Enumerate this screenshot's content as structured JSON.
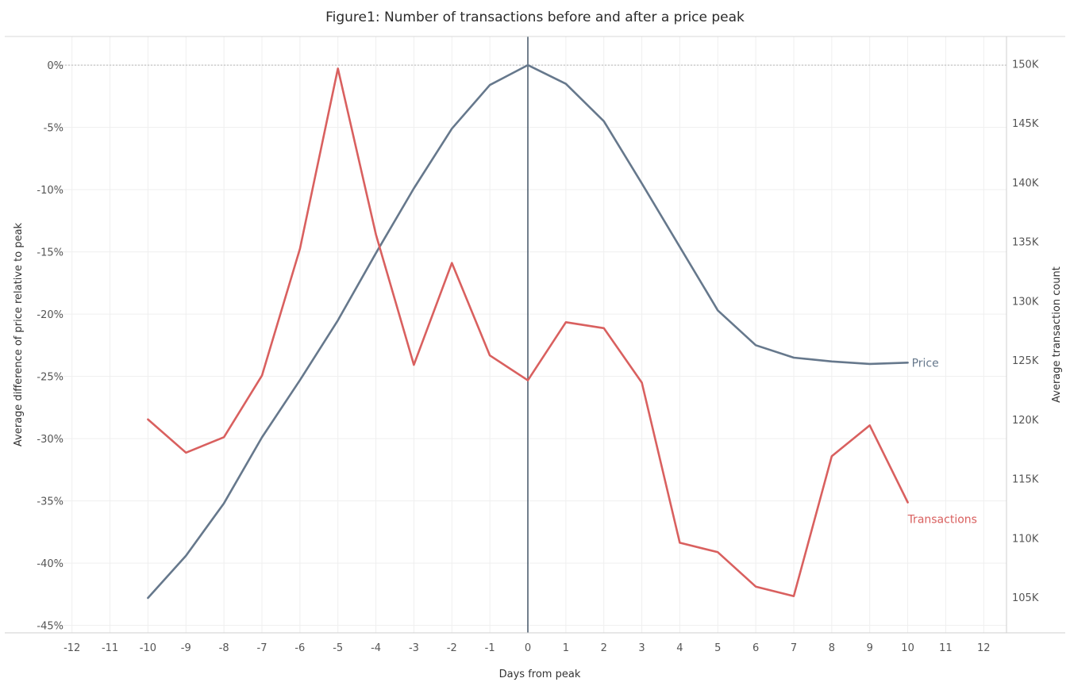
{
  "chart_data": {
    "type": "line",
    "title": "Figure1: Number of transactions before and after a price peak",
    "xlabel": "Days from peak",
    "ylabel_left": "Average difference of price relative to peak",
    "ylabel_right": "Average transaction count",
    "x_ticks": [
      -12,
      -11,
      -10,
      -9,
      -8,
      -7,
      -6,
      -5,
      -4,
      -3,
      -2,
      -1,
      0,
      1,
      2,
      3,
      4,
      5,
      6,
      7,
      8,
      9,
      10,
      11,
      12
    ],
    "xlim": [
      -12.6,
      12.6
    ],
    "y_left_ticks": [
      {
        "value": 0,
        "label": "0%"
      },
      {
        "value": -5,
        "label": "-5%"
      },
      {
        "value": -10,
        "label": "-10%"
      },
      {
        "value": -15,
        "label": "-15%"
      },
      {
        "value": -20,
        "label": "-20%"
      },
      {
        "value": -25,
        "label": "-25%"
      },
      {
        "value": -30,
        "label": "-30%"
      },
      {
        "value": -35,
        "label": "-35%"
      },
      {
        "value": -40,
        "label": "-40%"
      },
      {
        "value": -45,
        "label": "-45%"
      }
    ],
    "ylim_left": [
      -45.6,
      2.3
    ],
    "y_right_ticks": [
      {
        "value": 150000,
        "label": "150K"
      },
      {
        "value": 145000,
        "label": "145K"
      },
      {
        "value": 140000,
        "label": "140K"
      },
      {
        "value": 135000,
        "label": "135K"
      },
      {
        "value": 130000,
        "label": "130K"
      },
      {
        "value": 125000,
        "label": "125K"
      },
      {
        "value": 120000,
        "label": "120K"
      },
      {
        "value": 115000,
        "label": "115K"
      },
      {
        "value": 110000,
        "label": "110K"
      },
      {
        "value": 105000,
        "label": "105K"
      }
    ],
    "ylim_right": [
      102000,
      152300
    ],
    "grid": true,
    "reference_line_y": 0,
    "reference_line_x": 0,
    "series": [
      {
        "name": "Price",
        "axis": "left",
        "color": "#66788c",
        "x": [
          -10,
          -9,
          -8,
          -7,
          -6,
          -5,
          -4,
          -3,
          -2,
          -1,
          0,
          1,
          2,
          3,
          4,
          5,
          6,
          7,
          8,
          9,
          10
        ],
        "values": [
          -42.8,
          -39.4,
          -35.2,
          -29.9,
          -25.3,
          -20.5,
          -15.1,
          -9.9,
          -5.1,
          -1.6,
          0,
          -1.5,
          -4.5,
          -9.5,
          -14.6,
          -19.7,
          -22.5,
          -23.5,
          -23.8,
          -24.0,
          -23.9
        ]
      },
      {
        "name": "Transactions",
        "axis": "right",
        "color": "#d9605f",
        "x": [
          -10,
          -9,
          -8,
          -7,
          -6,
          -5,
          -4,
          -3,
          -2,
          -1,
          0,
          1,
          2,
          3,
          4,
          5,
          6,
          7,
          8,
          9,
          10
        ],
        "values": [
          120000,
          117200,
          118500,
          123700,
          134400,
          149600,
          135600,
          124600,
          133200,
          125400,
          123300,
          128200,
          127700,
          123100,
          109600,
          108800,
          105900,
          105100,
          116900,
          119500,
          113000
        ]
      }
    ]
  }
}
